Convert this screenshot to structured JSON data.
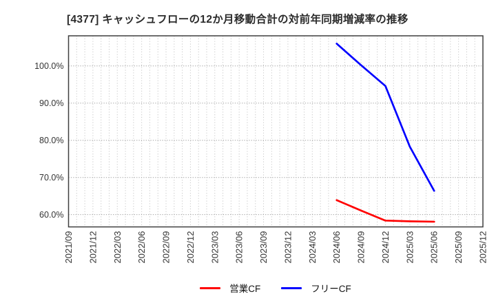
{
  "chart_data": {
    "type": "line",
    "title": "[4377]  キャッシュフローの12か月移動合計の対前年同期増減率の推移",
    "xlabel": "",
    "ylabel": "",
    "grid": true,
    "legend_position": "bottom",
    "ylim": [
      56.7,
      108.1
    ],
    "minor_x_gridlines_per_interval": 3,
    "x_tick_labels": [
      "2021/09",
      "2021/12",
      "2022/03",
      "2022/06",
      "2022/09",
      "2022/12",
      "2023/03",
      "2023/06",
      "2023/09",
      "2023/12",
      "2024/03",
      "2024/06",
      "2024/09",
      "2024/12",
      "2025/03",
      "2025/06",
      "2025/09",
      "2025/12"
    ],
    "y_ticks": [
      {
        "value": 100,
        "label": "100.0%"
      },
      {
        "value": 90,
        "label": "90.0%"
      },
      {
        "value": 80,
        "label": "80.0%"
      },
      {
        "value": 70,
        "label": "70.0%"
      },
      {
        "value": 60,
        "label": "60.0%"
      }
    ],
    "series": [
      {
        "name": "営業CF",
        "key": "operating-cf",
        "color": "#ff0000",
        "points": [
          [
            "2024/06",
            63.9
          ],
          [
            "2024/09",
            61.1
          ],
          [
            "2024/12",
            58.4
          ],
          [
            "2025/03",
            58.2
          ],
          [
            "2025/06",
            58.1
          ]
        ]
      },
      {
        "name": "フリーCF",
        "key": "free-cf",
        "color": "#0000ff",
        "points": [
          [
            "2024/06",
            106.0
          ],
          [
            "2024/09",
            100.2
          ],
          [
            "2024/12",
            94.6
          ],
          [
            "2025/03",
            78.3
          ],
          [
            "2025/06",
            66.4
          ]
        ]
      }
    ],
    "colors": {
      "background": "#ffffff",
      "frame": "#3f3f3f",
      "major_grid": "#9a9a9a",
      "minor_grid": "#c6c6c6",
      "tick_text": "#333333",
      "title_text": "#2b2b2b"
    }
  }
}
